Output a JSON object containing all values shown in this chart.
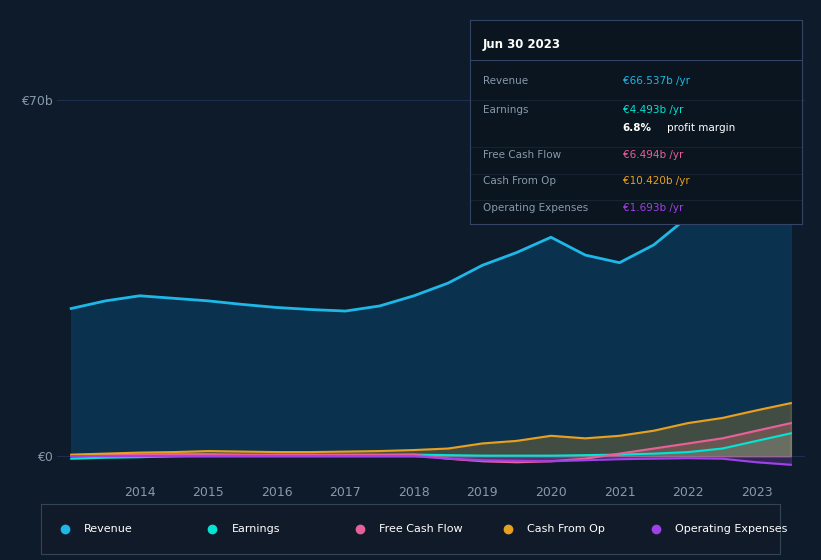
{
  "background_color": "#0d1b2a",
  "plot_bg_color": "#0d1b2a",
  "grid_color": "#1e3050",
  "years": [
    2013.0,
    2013.5,
    2014.0,
    2014.5,
    2015.0,
    2015.5,
    2016.0,
    2016.5,
    2017.0,
    2017.5,
    2018.0,
    2018.5,
    2019.0,
    2019.5,
    2020.0,
    2020.5,
    2021.0,
    2021.5,
    2022.0,
    2022.5,
    2023.0,
    2023.5
  ],
  "revenue": [
    29.0,
    30.5,
    31.5,
    31.0,
    30.5,
    29.8,
    29.2,
    28.8,
    28.5,
    29.5,
    31.5,
    34.0,
    37.5,
    40.0,
    43.0,
    39.5,
    38.0,
    41.5,
    47.0,
    54.0,
    62.0,
    66.537
  ],
  "earnings": [
    -0.5,
    -0.3,
    -0.2,
    0.0,
    0.1,
    0.1,
    0.1,
    0.2,
    0.2,
    0.2,
    0.3,
    0.2,
    0.1,
    0.1,
    0.1,
    0.2,
    0.3,
    0.5,
    0.8,
    1.5,
    3.0,
    4.493
  ],
  "free_cash_flow": [
    0.1,
    0.2,
    0.3,
    0.4,
    0.4,
    0.3,
    0.3,
    0.3,
    0.3,
    0.3,
    0.3,
    -0.5,
    -1.0,
    -1.2,
    -1.0,
    -0.5,
    0.5,
    1.5,
    2.5,
    3.5,
    5.0,
    6.494
  ],
  "cash_from_op": [
    0.3,
    0.5,
    0.7,
    0.8,
    1.0,
    0.9,
    0.8,
    0.8,
    0.9,
    1.0,
    1.2,
    1.5,
    2.5,
    3.0,
    4.0,
    3.5,
    4.0,
    5.0,
    6.5,
    7.5,
    9.0,
    10.42
  ],
  "operating_expenses": [
    0.0,
    0.0,
    0.0,
    0.0,
    0.0,
    0.0,
    0.0,
    0.0,
    0.0,
    0.0,
    0.0,
    -0.5,
    -0.8,
    -0.9,
    -1.0,
    -0.8,
    -0.6,
    -0.5,
    -0.4,
    -0.5,
    -1.2,
    -1.693
  ],
  "revenue_color": "#1eb8e8",
  "earnings_color": "#00e5d4",
  "free_cash_flow_color": "#e8609a",
  "cash_from_op_color": "#e8a020",
  "operating_expenses_color": "#a040e8",
  "revenue_fill_color": "#0a3a5c",
  "ylim": [
    -5,
    72
  ],
  "ytick_labels": [
    "€0",
    "€70b"
  ],
  "ytick_values": [
    0,
    70
  ],
  "xlabel_color": "#8899aa",
  "ylabel_color": "#ccddee",
  "legend_bg": "#111a28",
  "legend_border": "#334455",
  "tooltip_bg": "#0a1520",
  "tooltip_border": "#334466",
  "tooltip_title": "Jun 30 2023",
  "tooltip_rows": [
    {
      "label": "Revenue",
      "value": "€66.537b /yr",
      "color": "#1eb8e8"
    },
    {
      "label": "Earnings",
      "value": "€4.493b /yr",
      "color": "#00e5d4"
    },
    {
      "label": "",
      "value": "6.8% profit margin",
      "color": "#ffffff"
    },
    {
      "label": "Free Cash Flow",
      "value": "€6.494b /yr",
      "color": "#e8609a"
    },
    {
      "label": "Cash From Op",
      "value": "€10.420b /yr",
      "color": "#e8a020"
    },
    {
      "label": "Operating Expenses",
      "value": "€1.693b /yr",
      "color": "#a040e8"
    }
  ],
  "legend_items": [
    {
      "label": "Revenue",
      "color": "#1eb8e8"
    },
    {
      "label": "Earnings",
      "color": "#00e5d4"
    },
    {
      "label": "Free Cash Flow",
      "color": "#e8609a"
    },
    {
      "label": "Cash From Op",
      "color": "#e8a020"
    },
    {
      "label": "Operating Expenses",
      "color": "#a040e8"
    }
  ],
  "xtick_years": [
    2014,
    2015,
    2016,
    2017,
    2018,
    2019,
    2020,
    2021,
    2022,
    2023
  ],
  "line_width": 1.5
}
